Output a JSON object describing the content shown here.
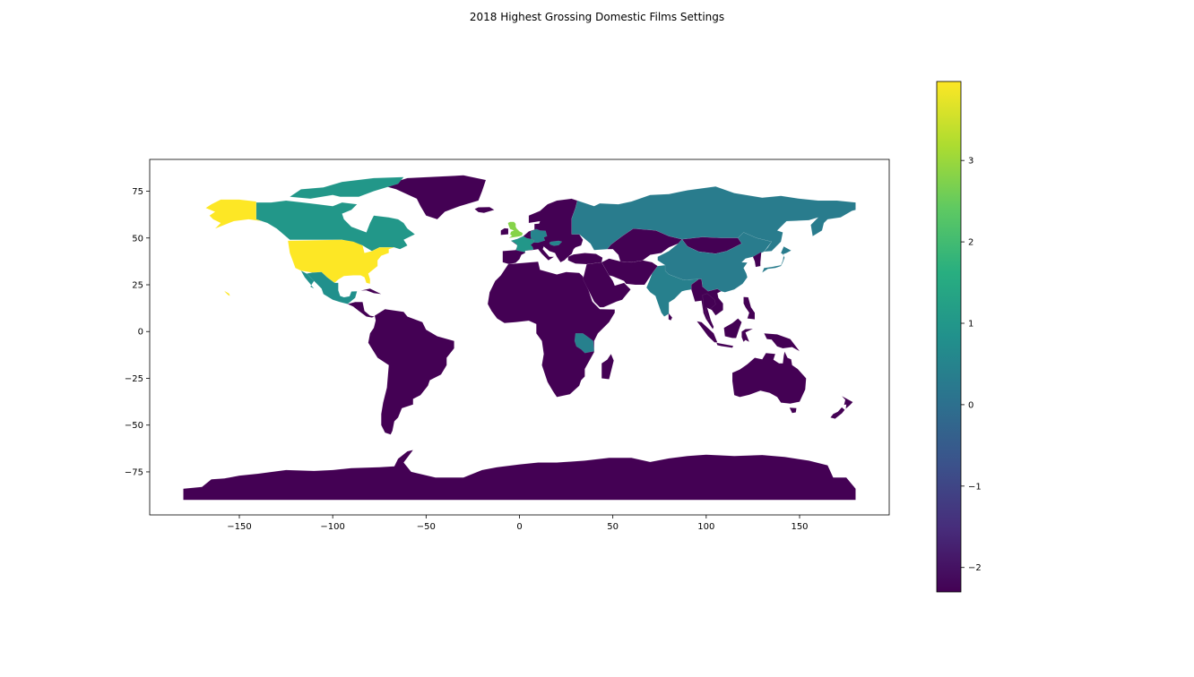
{
  "chart_data": {
    "type": "choropleth",
    "title": "2018 Highest Grossing Domestic Films Settings",
    "projection": "plate-carree",
    "colormap": "viridis",
    "xlim": [
      -198,
      198
    ],
    "ylim": [
      -98,
      92
    ],
    "xticks": [
      -150,
      -100,
      -50,
      0,
      50,
      100,
      150
    ],
    "yticks": [
      75,
      50,
      25,
      0,
      -25,
      -50,
      -75
    ],
    "xtick_labels": [
      "−150",
      "−100",
      "−50",
      "0",
      "50",
      "100",
      "150"
    ],
    "ytick_labels": [
      "75",
      "50",
      "25",
      "0",
      "−25",
      "−50",
      "−75"
    ],
    "colorbar": {
      "range": [
        -2.3,
        3.97
      ],
      "ticks": [
        3,
        2,
        1,
        0,
        -1,
        -2
      ],
      "tick_labels": [
        "3",
        "2",
        "1",
        "0",
        "−1",
        "−2"
      ]
    },
    "regions": [
      {
        "name": "United States",
        "value": 3.97
      },
      {
        "name": "Alaska",
        "value": 3.97
      },
      {
        "name": "United Kingdom",
        "value": 2.8
      },
      {
        "name": "France",
        "value": 1.0
      },
      {
        "name": "Canada",
        "value": 1.0
      },
      {
        "name": "Greenland",
        "value": -2.3
      },
      {
        "name": "Mexico",
        "value": 0.8
      },
      {
        "name": "Russia",
        "value": 0.3
      },
      {
        "name": "China",
        "value": 0.3
      },
      {
        "name": "India",
        "value": 0.4
      },
      {
        "name": "Japan",
        "value": 0.3
      },
      {
        "name": "Germany",
        "value": 0.5
      },
      {
        "name": "Tanzania",
        "value": 0.4
      },
      {
        "name": "South America",
        "value": -2.3
      },
      {
        "name": "Africa",
        "value": -2.3
      },
      {
        "name": "Australia",
        "value": -2.3
      },
      {
        "name": "Antarctica",
        "value": -2.3
      },
      {
        "name": "Europe (rest)",
        "value": -2.3
      },
      {
        "name": "Middle East",
        "value": -2.3
      },
      {
        "name": "Southeast Asia",
        "value": -2.3
      }
    ]
  }
}
